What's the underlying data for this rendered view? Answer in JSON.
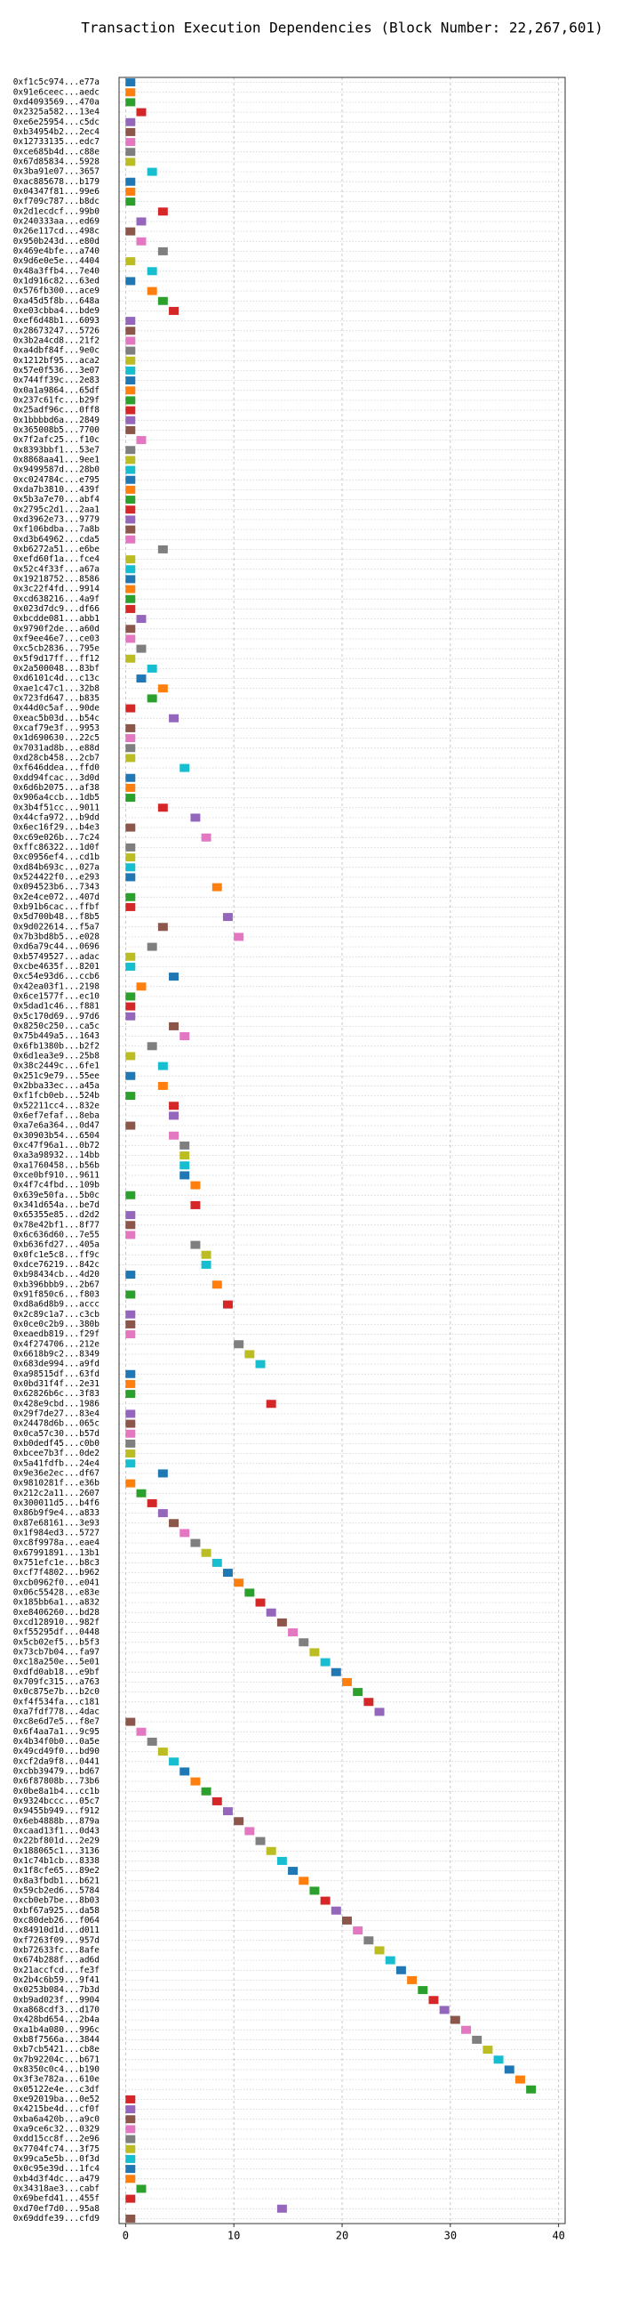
{
  "chart_data": {
    "type": "gantt",
    "title": "Transaction Execution Dependencies (Block Number: 22,267,601)",
    "categories": [
      "0xf1c5c974...e77a",
      "0x91e6ceec...aedc",
      "0xd4093569...470a",
      "0x2325a582...13e4",
      "0xe6e25954...c5dc",
      "0xb34954b2...2ec4",
      "0x12733135...edc7",
      "0xce685b4d...c88e",
      "0x67d85834...5928",
      "0x3ba91e07...3657",
      "0xac885678...b179",
      "0x04347f81...99e6",
      "0xf709c787...b8dc",
      "0x2d1ecdcf...99b0",
      "0x240333aa...ed69",
      "0x26e117cd...498c",
      "0x950b243d...e80d",
      "0x469e4bfe...a740",
      "0x9d6e0e5e...4404",
      "0x48a3ffb4...7e40",
      "0x1d916c82...63ed",
      "0x576fb300...ace9",
      "0xa45d5f8b...648a",
      "0xe03cbba4...bde9",
      "0xef6d48b1...6093",
      "0x28673247...5726",
      "0x3b2a4cd8...21f2",
      "0xa4dbf84f...9e0c",
      "0x1212bf95...aca2",
      "0x57e0f536...3e07",
      "0x744ff39c...2e83",
      "0x0a1a9864...65df",
      "0x237c61fc...b29f",
      "0x25adf96c...0ff8",
      "0x1bbbbd6a...2849",
      "0x365008b5...7700",
      "0x7f2afc25...f10c",
      "0x8393bbf1...53e7",
      "0x8868aa41...9ee1",
      "0x9499587d...28b0",
      "0xc024784c...e795",
      "0xda7b3810...439f",
      "0x5b3a7e70...abf4",
      "0x2795c2d1...2aa1",
      "0xd3962e73...9779",
      "0xf106bdba...7a8b",
      "0xd3b64962...cda5",
      "0xb6272a51...e6be",
      "0xefd60f1a...fce4",
      "0x52c4f33f...a67a",
      "0x19218752...8586",
      "0x3c22f4fd...9914",
      "0xcd638216...4a9f",
      "0x023d7dc9...df66",
      "0xbcdde081...abb1",
      "0x9790f2de...a60d",
      "0xf9ee46e7...ce03",
      "0xc5cb2836...795e",
      "0x5f9d17ff...ff12",
      "0x2a500048...83bf",
      "0xd6101c4d...c13c",
      "0xae1c47c1...32b8",
      "0x723fd647...b835",
      "0x44d0c5af...90de",
      "0xeac5b03d...b54c",
      "0xcaf79e3f...9953",
      "0x1d690630...22c5",
      "0x7031ad8b...e88d",
      "0xd28cb458...2cb7",
      "0xf646ddea...ffd0",
      "0xdd94fcac...3d0d",
      "0x6d6b2075...af38",
      "0x906a4ccb...1db5",
      "0x3b4f51cc...9011",
      "0x44cfa972...b9dd",
      "0x6ec16f29...b4e3",
      "0xc69e026b...7c24",
      "0xffc86322...1d0f",
      "0xc0956ef4...cd1b",
      "0xd84b693c...027a",
      "0x524422f0...e293",
      "0x094523b6...7343",
      "0x2e4ce072...407d",
      "0xb91b6cac...ffbf",
      "0x5d700b48...f8b5",
      "0x9d022614...f5a7",
      "0x7b3bd8b5...e028",
      "0xd6a79c44...0696",
      "0xb5749527...adac",
      "0xcbe4635f...8201",
      "0xc54e93d6...ccb6",
      "0x42ea03f1...2198",
      "0x6ce1577f...ec10",
      "0x5dad1c46...f881",
      "0x5c170d69...97d6",
      "0x8250c250...ca5c",
      "0x75b449a5...1643",
      "0x6fb1380b...b2f2",
      "0x6d1ea3e9...25b8",
      "0x38c2449c...6fe1",
      "0x251c9e79...55ee",
      "0x2bba33ec...a45a",
      "0xf1fcb0eb...524b",
      "0x52211cc4...832e",
      "0x6ef7efaf...8eba",
      "0xa7e6a364...0d47",
      "0x30903b54...6504",
      "0xc47f96a1...0b72",
      "0xa3a98932...14bb",
      "0xa1760458...b56b",
      "0xce0bf910...9611",
      "0x4f7c4fbd...109b",
      "0x639e50fa...5b0c",
      "0x341d654a...be7d",
      "0x65355e85...d2d2",
      "0x78e42bf1...8f77",
      "0x6c636d60...7e55",
      "0xb636fd27...405a",
      "0x0fc1e5c8...ff9c",
      "0xdce76219...842c",
      "0xb98434cb...4d20",
      "0xb396bbb9...2b67",
      "0x91f850c6...f803",
      "0xd8a6d8b9...accc",
      "0x2c89c1a7...c3cb",
      "0x0ce0c2b9...380b",
      "0xeaedb819...f29f",
      "0x4f274706...212e",
      "0x6618b9c2...8349",
      "0x683de994...a9fd",
      "0xa98515df...63fd",
      "0x0bd31f4f...2e31",
      "0x62826b6c...3f83",
      "0x428e9cbd...1986",
      "0x29f7de27...83e4",
      "0x24478d6b...065c",
      "0x0ca57c30...b57d",
      "0xb0dedf45...c0b0",
      "0xbcee7b3f...0de2",
      "0x5a41fdfb...24e4",
      "0x9e36e2ec...df67",
      "0x9810281f...e36b",
      "0x212c2a11...2607",
      "0x300011d5...b4f6",
      "0x86b9f9e4...a833",
      "0x87e68161...3e93",
      "0x1f984ed3...5727",
      "0xc8f9978a...eae4",
      "0x67991891...13b1",
      "0x751efc1e...b8c3",
      "0xcf7f4802...b962",
      "0xcb0962f0...e041",
      "0x06c55428...e83e",
      "0x185bb6a1...a832",
      "0xe8406260...bd28",
      "0xcd128910...982f",
      "0xf55295df...0448",
      "0x5cb02ef5...b5f3",
      "0x73cb7b04...fa97",
      "0xc18a250e...5e01",
      "0xdfd0ab18...e9bf",
      "0x709fc315...a763",
      "0x0c875e7b...b2c0",
      "0xf4f534fa...c181",
      "0xa7fdf778...4dac",
      "0xc8e6d7e5...f8e7",
      "0x6f4aa7a1...9c95",
      "0x4b34f0b0...0a5e",
      "0x49cd49f0...bd90",
      "0xcf2da9f8...0441",
      "0xcbb39479...bd67",
      "0x6f87808b...73b6",
      "0x0be8a1b4...cc1b",
      "0x9324bccc...05c7",
      "0x9455b949...f912",
      "0x6eb4888b...879a",
      "0xcaad13f1...0d43",
      "0x22bf801d...2e29",
      "0x188065c1...3136",
      "0x1c74b1cb...8338",
      "0x1f8cfe65...89e2",
      "0x8a3fbdb1...b621",
      "0x59cb2ed6...5784",
      "0xcb0eb7be...8b03",
      "0xbf67a925...da58",
      "0xc80deb26...f064",
      "0x84910d1d...d011",
      "0xf7263f09...957d",
      "0xb72633fc...8afe",
      "0x674b288f...ad6d",
      "0x21accfcd...fe3f",
      "0x2b4c6b59...9f41",
      "0x0253b084...7b3d",
      "0xb9ad023f...9904",
      "0xa868cdf3...d170",
      "0x428bd654...2b4a",
      "0xa1b4a080...996c",
      "0xb8f7566a...3844",
      "0xb7cb5421...cb8e",
      "0x7b92204c...b671",
      "0x8350c0c4...b190",
      "0x3f3e782a...610e",
      "0x05122e4e...c3df",
      "0xe92019ba...0e52",
      "0x4215be4d...cf0f",
      "0xba6a420b...a9c0",
      "0xa9ce6c32...0329",
      "0xdd15cc8f...2e96",
      "0x7704fc74...3f75",
      "0x99ca5e5b...0f3d",
      "0x0c95e39d...1fc4",
      "0xb4d3f4dc...a479",
      "0x34318ae3...cabf",
      "0x69befd41...455f",
      "0xd70ef7d0...95a8",
      "0x69ddfe39...cfd9"
    ],
    "values": [
      0,
      0,
      0,
      1,
      0,
      0,
      0,
      0,
      0,
      2,
      0,
      0,
      0,
      3,
      1,
      0,
      1,
      3,
      0,
      2,
      0,
      2,
      3,
      4,
      0,
      0,
      0,
      0,
      0,
      0,
      0,
      0,
      0,
      0,
      0,
      0,
      1,
      0,
      0,
      0,
      0,
      0,
      0,
      0,
      0,
      0,
      0,
      3,
      0,
      0,
      0,
      0,
      0,
      0,
      1,
      0,
      0,
      1,
      0,
      2,
      1,
      3,
      2,
      0,
      4,
      0,
      0,
      0,
      0,
      5,
      0,
      0,
      0,
      3,
      6,
      0,
      7,
      0,
      0,
      0,
      0,
      8,
      0,
      0,
      9,
      3,
      10,
      2,
      0,
      0,
      4,
      1,
      0,
      0,
      0,
      4,
      5,
      2,
      0,
      3,
      0,
      3,
      0,
      4,
      4,
      0,
      4,
      5,
      5,
      5,
      5,
      6,
      0,
      6,
      0,
      0,
      0,
      6,
      7,
      7,
      0,
      8,
      0,
      9,
      0,
      0,
      0,
      10,
      11,
      12,
      0,
      0,
      0,
      13,
      0,
      0,
      0,
      0,
      0,
      0,
      3,
      0,
      1,
      2,
      3,
      4,
      5,
      6,
      7,
      8,
      9,
      10,
      11,
      12,
      13,
      14,
      15,
      16,
      17,
      18,
      19,
      20,
      21,
      22,
      23,
      0,
      1,
      2,
      3,
      4,
      5,
      6,
      7,
      8,
      9,
      10,
      11,
      12,
      13,
      14,
      15,
      16,
      17,
      18,
      19,
      20,
      21,
      22,
      23,
      24,
      25,
      26,
      27,
      28,
      29,
      30,
      31,
      32,
      33,
      34,
      35,
      36,
      37,
      0,
      0,
      0,
      0,
      0,
      0,
      0,
      0,
      0,
      1,
      0,
      14,
      0
    ],
    "colors": [
      "#1f77b4",
      "#ff7f0e",
      "#2ca02c",
      "#d62728",
      "#9467bd",
      "#8c564b",
      "#e377c2",
      "#7f7f7f",
      "#bcbd22",
      "#17becf"
    ],
    "xlim": [
      -0.6,
      40.6
    ],
    "xticks": [
      0,
      10,
      20,
      30,
      40
    ],
    "grid": true
  }
}
